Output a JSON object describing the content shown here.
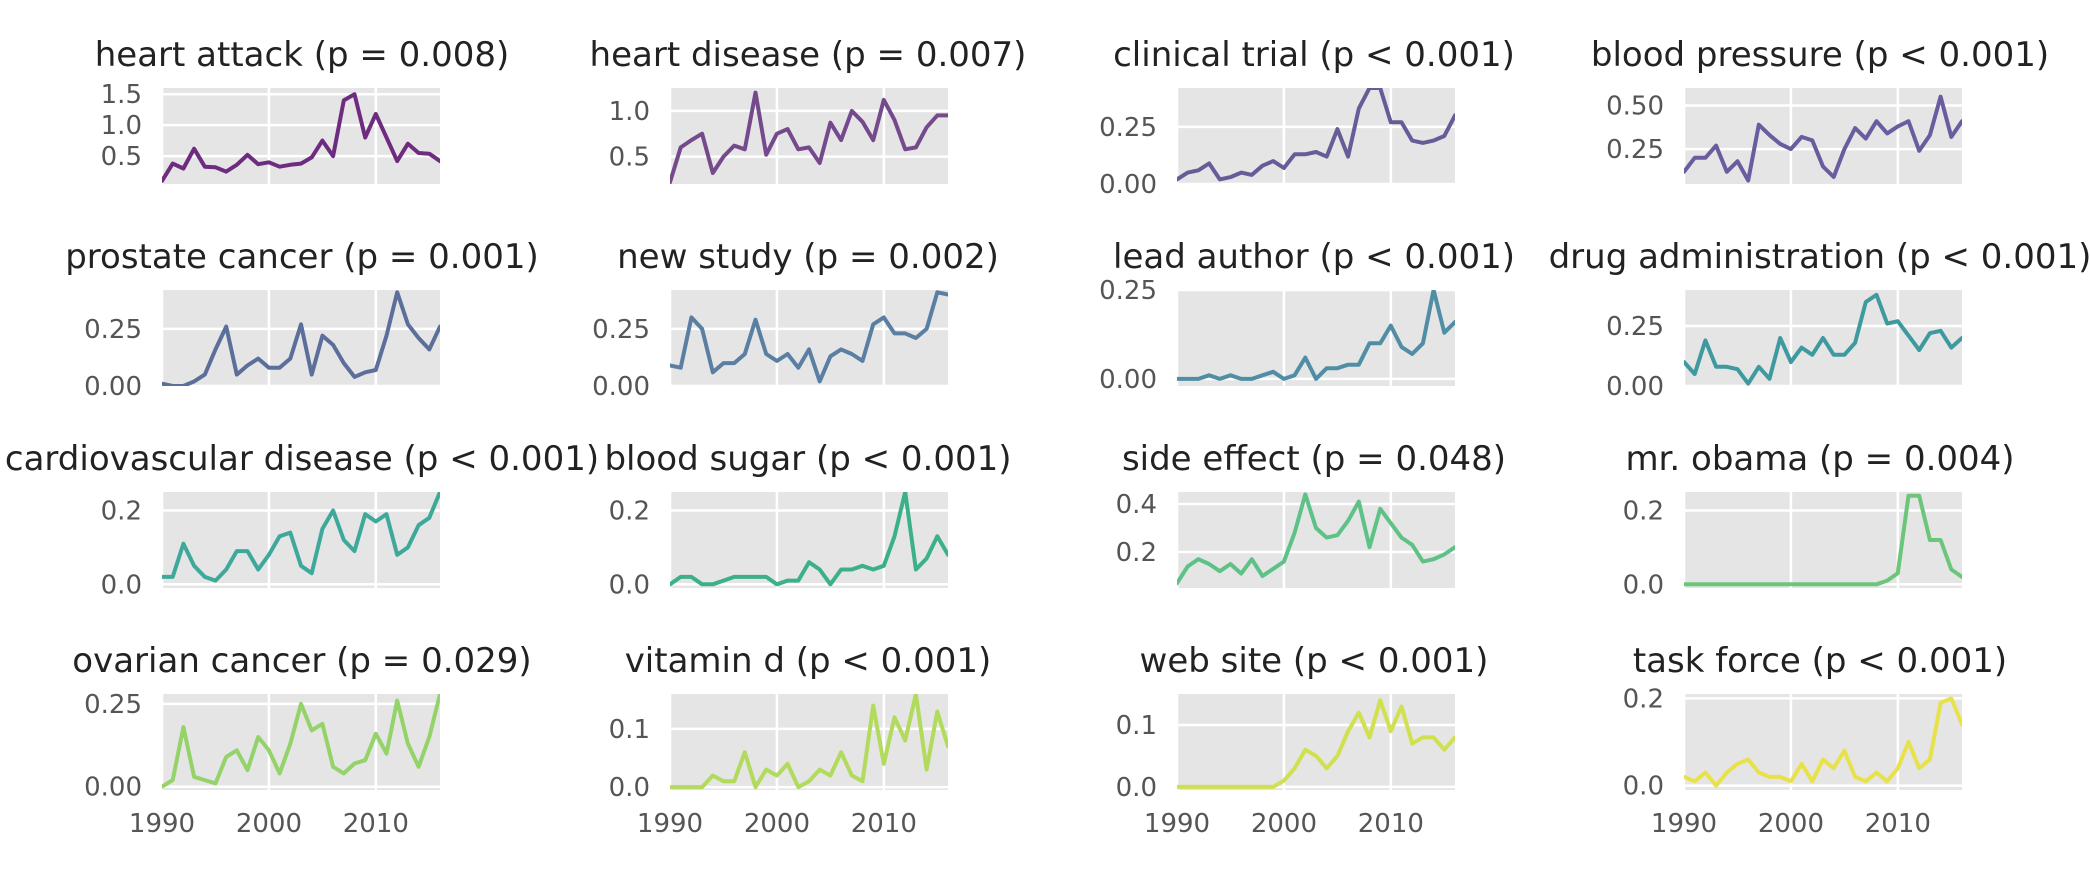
{
  "chart_data": [
    {
      "type": "line",
      "title": "heart attack (p = 0.008)",
      "color": "#6e2c80",
      "xlim": [
        1990,
        2016
      ],
      "ylim": [
        0.05,
        1.6
      ],
      "yticks": [
        0.5,
        1.0,
        1.5
      ],
      "ytick_labels": [
        "0.5",
        "1.0",
        "1.5"
      ],
      "x": [
        1990,
        1991,
        1992,
        1993,
        1994,
        1995,
        1996,
        1997,
        1998,
        1999,
        2000,
        2001,
        2002,
        2003,
        2004,
        2005,
        2006,
        2007,
        2008,
        2009,
        2010,
        2011,
        2012,
        2013,
        2014,
        2015,
        2016
      ],
      "values": [
        0.1,
        0.38,
        0.3,
        0.62,
        0.33,
        0.32,
        0.25,
        0.36,
        0.52,
        0.37,
        0.4,
        0.33,
        0.36,
        0.38,
        0.48,
        0.75,
        0.5,
        1.4,
        1.5,
        0.8,
        1.18,
        0.8,
        0.42,
        0.7,
        0.55,
        0.54,
        0.42
      ]
    },
    {
      "type": "line",
      "title": "heart disease (p = 0.007)",
      "color": "#744a8d",
      "xlim": [
        1990,
        2016
      ],
      "ylim": [
        0.2,
        1.25
      ],
      "yticks": [
        0.5,
        1.0
      ],
      "ytick_labels": [
        "0.5",
        "1.0"
      ],
      "x": [
        1990,
        1991,
        1992,
        1993,
        1994,
        1995,
        1996,
        1997,
        1998,
        1999,
        2000,
        2001,
        2002,
        2003,
        2004,
        2005,
        2006,
        2007,
        2008,
        2009,
        2010,
        2011,
        2012,
        2013,
        2014,
        2015,
        2016
      ],
      "values": [
        0.22,
        0.6,
        0.68,
        0.75,
        0.32,
        0.5,
        0.62,
        0.58,
        1.2,
        0.52,
        0.75,
        0.8,
        0.58,
        0.6,
        0.43,
        0.87,
        0.68,
        1.0,
        0.88,
        0.68,
        1.12,
        0.9,
        0.58,
        0.6,
        0.82,
        0.95,
        0.95
      ]
    },
    {
      "type": "line",
      "title": "clinical trial (p < 0.001)",
      "color": "#675c98",
      "xlim": [
        1990,
        2016
      ],
      "ylim": [
        0.0,
        0.42
      ],
      "yticks": [
        0.0,
        0.25
      ],
      "ytick_labels": [
        "0.00",
        "0.25"
      ],
      "x": [
        1990,
        1991,
        1992,
        1993,
        1994,
        1995,
        1996,
        1997,
        1998,
        1999,
        2000,
        2001,
        2002,
        2003,
        2004,
        2005,
        2006,
        2007,
        2008,
        2009,
        2010,
        2011,
        2012,
        2013,
        2014,
        2015,
        2016
      ],
      "values": [
        0.02,
        0.05,
        0.06,
        0.09,
        0.02,
        0.03,
        0.05,
        0.04,
        0.08,
        0.1,
        0.07,
        0.13,
        0.13,
        0.14,
        0.12,
        0.24,
        0.12,
        0.33,
        0.42,
        0.42,
        0.27,
        0.27,
        0.19,
        0.18,
        0.19,
        0.21,
        0.3
      ]
    },
    {
      "type": "line",
      "title": "blood pressure (p < 0.001)",
      "color": "#6a5c9f",
      "xlim": [
        1990,
        2016
      ],
      "ylim": [
        0.05,
        0.6
      ],
      "yticks": [
        0.25,
        0.5
      ],
      "ytick_labels": [
        "0.25",
        "0.50"
      ],
      "x": [
        1990,
        1991,
        1992,
        1993,
        1994,
        1995,
        1996,
        1997,
        1998,
        1999,
        2000,
        2001,
        2002,
        2003,
        2004,
        2005,
        2006,
        2007,
        2008,
        2009,
        2010,
        2011,
        2012,
        2013,
        2014,
        2015,
        2016
      ],
      "values": [
        0.12,
        0.2,
        0.2,
        0.27,
        0.12,
        0.18,
        0.07,
        0.39,
        0.33,
        0.28,
        0.25,
        0.32,
        0.3,
        0.15,
        0.09,
        0.25,
        0.37,
        0.31,
        0.41,
        0.34,
        0.38,
        0.41,
        0.24,
        0.33,
        0.55,
        0.32,
        0.41
      ]
    },
    {
      "type": "line",
      "title": "prostate cancer (p = 0.001)",
      "color": "#5c6f9a",
      "xlim": [
        1990,
        2016
      ],
      "ylim": [
        0.0,
        0.42
      ],
      "yticks": [
        0.0,
        0.25
      ],
      "ytick_labels": [
        "0.00",
        "0.25"
      ],
      "x": [
        1990,
        1991,
        1992,
        1993,
        1994,
        1995,
        1996,
        1997,
        1998,
        1999,
        2000,
        2001,
        2002,
        2003,
        2004,
        2005,
        2006,
        2007,
        2008,
        2009,
        2010,
        2011,
        2012,
        2013,
        2014,
        2015,
        2016
      ],
      "values": [
        0.01,
        0.0,
        0.0,
        0.02,
        0.05,
        0.16,
        0.26,
        0.05,
        0.09,
        0.12,
        0.08,
        0.08,
        0.12,
        0.27,
        0.05,
        0.22,
        0.18,
        0.1,
        0.04,
        0.06,
        0.07,
        0.22,
        0.41,
        0.27,
        0.21,
        0.16,
        0.26
      ]
    },
    {
      "type": "line",
      "title": "new study (p = 0.002)",
      "color": "#5a7fa2",
      "xlim": [
        1990,
        2016
      ],
      "ylim": [
        0.0,
        0.42
      ],
      "yticks": [
        0.0,
        0.25
      ],
      "ytick_labels": [
        "0.00",
        "0.25"
      ],
      "x": [
        1990,
        1991,
        1992,
        1993,
        1994,
        1995,
        1996,
        1997,
        1998,
        1999,
        2000,
        2001,
        2002,
        2003,
        2004,
        2005,
        2006,
        2007,
        2008,
        2009,
        2010,
        2011,
        2012,
        2013,
        2014,
        2015,
        2016
      ],
      "values": [
        0.09,
        0.08,
        0.3,
        0.25,
        0.06,
        0.1,
        0.1,
        0.14,
        0.29,
        0.14,
        0.11,
        0.14,
        0.08,
        0.16,
        0.02,
        0.13,
        0.16,
        0.14,
        0.11,
        0.27,
        0.3,
        0.23,
        0.23,
        0.21,
        0.25,
        0.41,
        0.4
      ]
    },
    {
      "type": "line",
      "title": "lead author (p < 0.001)",
      "color": "#4f8ea5",
      "xlim": [
        1990,
        2016
      ],
      "ylim": [
        -0.02,
        0.25
      ],
      "yticks": [
        0.0,
        0.25
      ],
      "ytick_labels": [
        "0.00",
        "0.25"
      ],
      "x": [
        1990,
        1991,
        1992,
        1993,
        1994,
        1995,
        1996,
        1997,
        1998,
        1999,
        2000,
        2001,
        2002,
        2003,
        2004,
        2005,
        2006,
        2007,
        2008,
        2009,
        2010,
        2011,
        2012,
        2013,
        2014,
        2015,
        2016
      ],
      "values": [
        0.0,
        0.0,
        0.0,
        0.01,
        0.0,
        0.01,
        0.0,
        0.0,
        0.01,
        0.02,
        0.0,
        0.01,
        0.06,
        0.0,
        0.03,
        0.03,
        0.04,
        0.04,
        0.1,
        0.1,
        0.15,
        0.09,
        0.07,
        0.1,
        0.25,
        0.13,
        0.16
      ]
    },
    {
      "type": "line",
      "title": "drug administration (p < 0.001)",
      "color": "#3f9aa0",
      "xlim": [
        1990,
        2016
      ],
      "ylim": [
        0.0,
        0.4
      ],
      "yticks": [
        0.0,
        0.25
      ],
      "ytick_labels": [
        "0.00",
        "0.25"
      ],
      "x": [
        1990,
        1991,
        1992,
        1993,
        1994,
        1995,
        1996,
        1997,
        1998,
        1999,
        2000,
        2001,
        2002,
        2003,
        2004,
        2005,
        2006,
        2007,
        2008,
        2009,
        2010,
        2011,
        2012,
        2013,
        2014,
        2015,
        2016
      ],
      "values": [
        0.1,
        0.05,
        0.19,
        0.08,
        0.08,
        0.07,
        0.01,
        0.08,
        0.03,
        0.2,
        0.1,
        0.16,
        0.13,
        0.2,
        0.13,
        0.13,
        0.18,
        0.35,
        0.38,
        0.26,
        0.27,
        0.21,
        0.15,
        0.22,
        0.23,
        0.16,
        0.2
      ]
    },
    {
      "type": "line",
      "title": "cardiovascular disease (p < 0.001)",
      "color": "#3ea99b",
      "xlim": [
        1990,
        2016
      ],
      "ylim": [
        -0.01,
        0.25
      ],
      "yticks": [
        0.0,
        0.2
      ],
      "ytick_labels": [
        "0.0",
        "0.2"
      ],
      "x": [
        1990,
        1991,
        1992,
        1993,
        1994,
        1995,
        1996,
        1997,
        1998,
        1999,
        2000,
        2001,
        2002,
        2003,
        2004,
        2005,
        2006,
        2007,
        2008,
        2009,
        2010,
        2011,
        2012,
        2013,
        2014,
        2015,
        2016
      ],
      "values": [
        0.02,
        0.02,
        0.11,
        0.05,
        0.02,
        0.01,
        0.04,
        0.09,
        0.09,
        0.04,
        0.08,
        0.13,
        0.14,
        0.05,
        0.03,
        0.15,
        0.2,
        0.12,
        0.09,
        0.19,
        0.17,
        0.19,
        0.08,
        0.1,
        0.16,
        0.18,
        0.25
      ]
    },
    {
      "type": "line",
      "title": "blood sugar (p < 0.001)",
      "color": "#3bb08b",
      "xlim": [
        1990,
        2016
      ],
      "ylim": [
        -0.01,
        0.25
      ],
      "yticks": [
        0.0,
        0.2
      ],
      "ytick_labels": [
        "0.0",
        "0.2"
      ],
      "x": [
        1990,
        1991,
        1992,
        1993,
        1994,
        1995,
        1996,
        1997,
        1998,
        1999,
        2000,
        2001,
        2002,
        2003,
        2004,
        2005,
        2006,
        2007,
        2008,
        2009,
        2010,
        2011,
        2012,
        2013,
        2014,
        2015,
        2016
      ],
      "values": [
        0.0,
        0.02,
        0.02,
        0.0,
        0.0,
        0.01,
        0.02,
        0.02,
        0.02,
        0.02,
        0.0,
        0.01,
        0.01,
        0.06,
        0.04,
        0.0,
        0.04,
        0.04,
        0.05,
        0.04,
        0.05,
        0.13,
        0.25,
        0.04,
        0.07,
        0.13,
        0.08
      ]
    },
    {
      "type": "line",
      "title": "side effect (p = 0.048)",
      "color": "#5ec287",
      "xlim": [
        1990,
        2016
      ],
      "ylim": [
        0.05,
        0.45
      ],
      "yticks": [
        0.2,
        0.4
      ],
      "ytick_labels": [
        "0.2",
        "0.4"
      ],
      "x": [
        1990,
        1991,
        1992,
        1993,
        1994,
        1995,
        1996,
        1997,
        1998,
        1999,
        2000,
        2001,
        2002,
        2003,
        2004,
        2005,
        2006,
        2007,
        2008,
        2009,
        2010,
        2011,
        2012,
        2013,
        2014,
        2015,
        2016
      ],
      "values": [
        0.07,
        0.14,
        0.17,
        0.15,
        0.12,
        0.15,
        0.11,
        0.17,
        0.1,
        0.13,
        0.16,
        0.28,
        0.44,
        0.3,
        0.26,
        0.27,
        0.33,
        0.41,
        0.22,
        0.38,
        0.32,
        0.26,
        0.23,
        0.16,
        0.17,
        0.19,
        0.22
      ]
    },
    {
      "type": "line",
      "title": "mr. obama (p = 0.004)",
      "color": "#6cc67a",
      "xlim": [
        1990,
        2016
      ],
      "ylim": [
        -0.01,
        0.25
      ],
      "yticks": [
        0.0,
        0.2
      ],
      "ytick_labels": [
        "0.0",
        "0.2"
      ],
      "x": [
        1990,
        1991,
        1992,
        1993,
        1994,
        1995,
        1996,
        1997,
        1998,
        1999,
        2000,
        2001,
        2002,
        2003,
        2004,
        2005,
        2006,
        2007,
        2008,
        2009,
        2010,
        2011,
        2012,
        2013,
        2014,
        2015,
        2016
      ],
      "values": [
        0.0,
        0.0,
        0.0,
        0.0,
        0.0,
        0.0,
        0.0,
        0.0,
        0.0,
        0.0,
        0.0,
        0.0,
        0.0,
        0.0,
        0.0,
        0.0,
        0.0,
        0.0,
        0.0,
        0.01,
        0.03,
        0.24,
        0.24,
        0.12,
        0.12,
        0.04,
        0.02
      ]
    },
    {
      "type": "line",
      "title": "ovarian cancer (p = 0.029)",
      "color": "#94d26a",
      "xlim": [
        1990,
        2016
      ],
      "ylim": [
        -0.01,
        0.28
      ],
      "yticks": [
        0.0,
        0.25
      ],
      "ytick_labels": [
        "0.00",
        "0.25"
      ],
      "x": [
        1990,
        1991,
        1992,
        1993,
        1994,
        1995,
        1996,
        1997,
        1998,
        1999,
        2000,
        2001,
        2002,
        2003,
        2004,
        2005,
        2006,
        2007,
        2008,
        2009,
        2010,
        2011,
        2012,
        2013,
        2014,
        2015,
        2016
      ],
      "values": [
        0.0,
        0.02,
        0.18,
        0.03,
        0.02,
        0.01,
        0.09,
        0.11,
        0.05,
        0.15,
        0.11,
        0.04,
        0.13,
        0.25,
        0.17,
        0.19,
        0.06,
        0.04,
        0.07,
        0.08,
        0.16,
        0.1,
        0.26,
        0.13,
        0.06,
        0.15,
        0.28
      ]
    },
    {
      "type": "line",
      "title": "vitamin d (p < 0.001)",
      "color": "#b2da5c",
      "xlim": [
        1990,
        2016
      ],
      "ylim": [
        -0.005,
        0.16
      ],
      "yticks": [
        0.0,
        0.1
      ],
      "ytick_labels": [
        "0.0",
        "0.1"
      ],
      "x": [
        1990,
        1991,
        1992,
        1993,
        1994,
        1995,
        1996,
        1997,
        1998,
        1999,
        2000,
        2001,
        2002,
        2003,
        2004,
        2005,
        2006,
        2007,
        2008,
        2009,
        2010,
        2011,
        2012,
        2013,
        2014,
        2015,
        2016
      ],
      "values": [
        0.0,
        0.0,
        0.0,
        0.0,
        0.02,
        0.01,
        0.01,
        0.06,
        0.0,
        0.03,
        0.02,
        0.04,
        0.0,
        0.01,
        0.03,
        0.02,
        0.06,
        0.02,
        0.01,
        0.14,
        0.04,
        0.12,
        0.08,
        0.16,
        0.03,
        0.13,
        0.07
      ]
    },
    {
      "type": "line",
      "title": "web site (p < 0.001)",
      "color": "#d0e04e",
      "xlim": [
        1990,
        2016
      ],
      "ylim": [
        -0.005,
        0.15
      ],
      "yticks": [
        0.0,
        0.1
      ],
      "ytick_labels": [
        "0.0",
        "0.1"
      ],
      "x": [
        1990,
        1991,
        1992,
        1993,
        1994,
        1995,
        1996,
        1997,
        1998,
        1999,
        2000,
        2001,
        2002,
        2003,
        2004,
        2005,
        2006,
        2007,
        2008,
        2009,
        2010,
        2011,
        2012,
        2013,
        2014,
        2015,
        2016
      ],
      "values": [
        0.0,
        0.0,
        0.0,
        0.0,
        0.0,
        0.0,
        0.0,
        0.0,
        0.0,
        0.0,
        0.01,
        0.03,
        0.06,
        0.05,
        0.03,
        0.05,
        0.09,
        0.12,
        0.08,
        0.14,
        0.09,
        0.13,
        0.07,
        0.08,
        0.08,
        0.06,
        0.08
      ]
    },
    {
      "type": "line",
      "title": "task force (p < 0.001)",
      "color": "#e8e24a",
      "xlim": [
        1990,
        2016
      ],
      "ylim": [
        -0.01,
        0.21
      ],
      "yticks": [
        0.0,
        0.2
      ],
      "ytick_labels": [
        "0.0",
        "0.2"
      ],
      "x": [
        1990,
        1991,
        1992,
        1993,
        1994,
        1995,
        1996,
        1997,
        1998,
        1999,
        2000,
        2001,
        2002,
        2003,
        2004,
        2005,
        2006,
        2007,
        2008,
        2009,
        2010,
        2011,
        2012,
        2013,
        2014,
        2015,
        2016
      ],
      "values": [
        0.02,
        0.01,
        0.03,
        0.0,
        0.03,
        0.05,
        0.06,
        0.03,
        0.02,
        0.02,
        0.01,
        0.05,
        0.01,
        0.06,
        0.04,
        0.08,
        0.02,
        0.01,
        0.03,
        0.01,
        0.04,
        0.1,
        0.04,
        0.06,
        0.19,
        0.2,
        0.14
      ]
    }
  ],
  "shared_xaxis": {
    "ticks": [
      1990,
      2000,
      2010
    ],
    "tick_labels": [
      "1990",
      "2000",
      "2010"
    ]
  }
}
